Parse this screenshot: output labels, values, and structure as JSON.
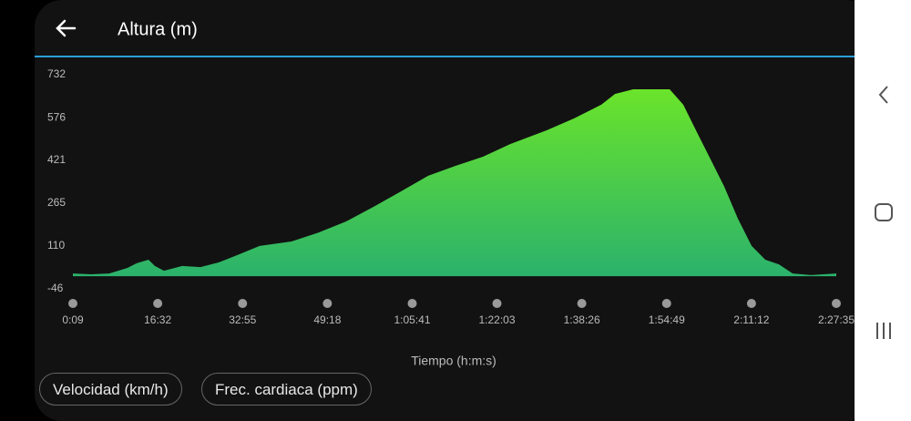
{
  "header": {
    "title": "Altura (m)"
  },
  "chart_data": {
    "type": "area",
    "x_label": "Tiempo (h:m:s)",
    "x": [
      9,
      220,
      431,
      642,
      748,
      885,
      959,
      1065,
      1276,
      1487,
      1698,
      1909,
      2173,
      2542,
      2859,
      3176,
      3492,
      3809,
      4126,
      4443,
      4760,
      5076,
      5499,
      5815,
      6132,
      6290,
      6501,
      6924,
      7082,
      7240,
      7399,
      7557,
      7715,
      7874,
      8032,
      8190,
      8349,
      8560,
      8855
    ],
    "values": [
      10,
      7,
      10,
      30,
      47,
      60,
      37,
      20,
      37,
      33,
      50,
      76,
      110,
      126,
      159,
      199,
      252,
      308,
      365,
      401,
      434,
      480,
      530,
      573,
      623,
      662,
      679,
      679,
      623,
      523,
      424,
      325,
      209,
      110,
      60,
      43,
      10,
      4,
      10
    ],
    "color_top": "#6ae42a",
    "color_bottom": "#2bb26c",
    "xlim": [
      9,
      8855
    ],
    "xticks": [
      {
        "value": 9,
        "label": "0:09"
      },
      {
        "value": 992,
        "label": "16:32"
      },
      {
        "value": 1975,
        "label": "32:55"
      },
      {
        "value": 2958,
        "label": "49:18"
      },
      {
        "value": 3941,
        "label": "1:05:41"
      },
      {
        "value": 4923,
        "label": "1:22:03"
      },
      {
        "value": 5906,
        "label": "1:38:26"
      },
      {
        "value": 6889,
        "label": "1:54:49"
      },
      {
        "value": 7872,
        "label": "2:11:12"
      },
      {
        "value": 8855,
        "label": "2:27:35"
      }
    ],
    "ylim": [
      -46,
      732
    ],
    "yticks": [
      -46,
      110,
      265,
      421,
      576,
      732
    ]
  },
  "buttons": [
    "Velocidad (km/h)",
    "Frec. cardiaca (ppm)"
  ]
}
